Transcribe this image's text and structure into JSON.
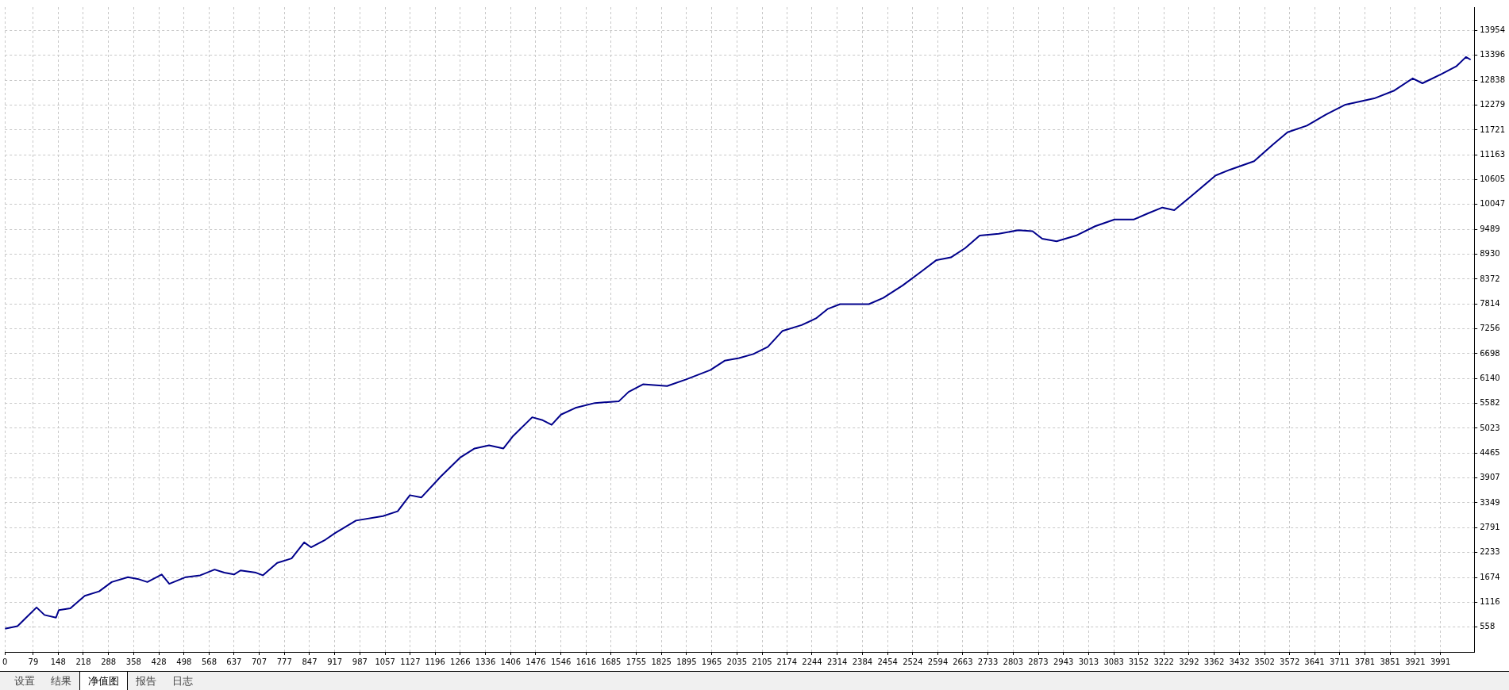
{
  "chart_data": {
    "type": "line",
    "x": [
      0,
      35,
      54,
      88,
      110,
      142,
      150,
      182,
      222,
      262,
      297,
      342,
      369,
      396,
      436,
      457,
      503,
      543,
      583,
      610,
      637,
      655,
      698,
      717,
      757,
      797,
      832,
      851,
      891,
      918,
      976,
      1051,
      1092,
      1126,
      1158,
      1212,
      1265,
      1306,
      1346,
      1386,
      1413,
      1466,
      1493,
      1520,
      1546,
      1586,
      1640,
      1707,
      1734,
      1774,
      1841,
      1894,
      1961,
      2001,
      2041,
      2081,
      2121,
      2162,
      2215,
      2255,
      2287,
      2322,
      2402,
      2442,
      2496,
      2549,
      2590,
      2630,
      2670,
      2710,
      2763,
      2817,
      2857,
      2884,
      2924,
      2978,
      3031,
      3085,
      3138,
      3178,
      3218,
      3251,
      3299,
      3366,
      3406,
      3473,
      3526,
      3566,
      3620,
      3673,
      3727,
      3807,
      3861,
      3914,
      3941,
      3995,
      4035,
      4062,
      4075
    ],
    "series": [
      {
        "color": "#00008b",
        "values": [
          520,
          580,
          730,
          1000,
          830,
          770,
          940,
          980,
          1260,
          1360,
          1570,
          1680,
          1640,
          1570,
          1740,
          1530,
          1680,
          1720,
          1850,
          1780,
          1740,
          1830,
          1780,
          1720,
          2000,
          2100,
          2460,
          2350,
          2520,
          2670,
          2950,
          3050,
          3160,
          3520,
          3470,
          3940,
          4360,
          4570,
          4640,
          4570,
          4850,
          5270,
          5210,
          5100,
          5330,
          5480,
          5590,
          5630,
          5840,
          6010,
          5970,
          6120,
          6330,
          6540,
          6600,
          6690,
          6850,
          7210,
          7340,
          7490,
          7700,
          7810,
          7810,
          7950,
          8230,
          8550,
          8800,
          8860,
          9070,
          9350,
          9390,
          9470,
          9450,
          9280,
          9220,
          9350,
          9560,
          9710,
          9710,
          9850,
          9980,
          9920,
          10240,
          10700,
          10830,
          11020,
          11400,
          11670,
          11820,
          12070,
          12290,
          12430,
          12600,
          12880,
          12770,
          12980,
          13150,
          13360,
          13300
        ]
      }
    ],
    "xlim": [
      0,
      4085
    ],
    "xticks": [
      0,
      79,
      148,
      218,
      288,
      358,
      428,
      498,
      568,
      637,
      707,
      777,
      847,
      917,
      987,
      1057,
      1127,
      1196,
      1266,
      1336,
      1406,
      1476,
      1546,
      1616,
      1685,
      1755,
      1825,
      1895,
      1965,
      2035,
      2105,
      2174,
      2244,
      2314,
      2384,
      2454,
      2524,
      2594,
      2663,
      2733,
      2803,
      2873,
      2943,
      3013,
      3083,
      3152,
      3222,
      3292,
      3362,
      3432,
      3502,
      3572,
      3641,
      3711,
      3781,
      3851,
      3921,
      3991
    ],
    "ylim": [
      0,
      14480
    ],
    "yticks": [
      558,
      1116,
      1674,
      2233,
      2791,
      3349,
      3907,
      4465,
      5023,
      5582,
      6140,
      6698,
      7256,
      7814,
      8372,
      8930,
      9489,
      10047,
      10605,
      11163,
      11721,
      12279,
      12838,
      13396,
      13954
    ],
    "grid": true,
    "legend": false,
    "marker": "none",
    "line_style": "solid",
    "annotations": [
      "设置",
      "结果",
      "净值图",
      "报告",
      "日志"
    ]
  }
}
